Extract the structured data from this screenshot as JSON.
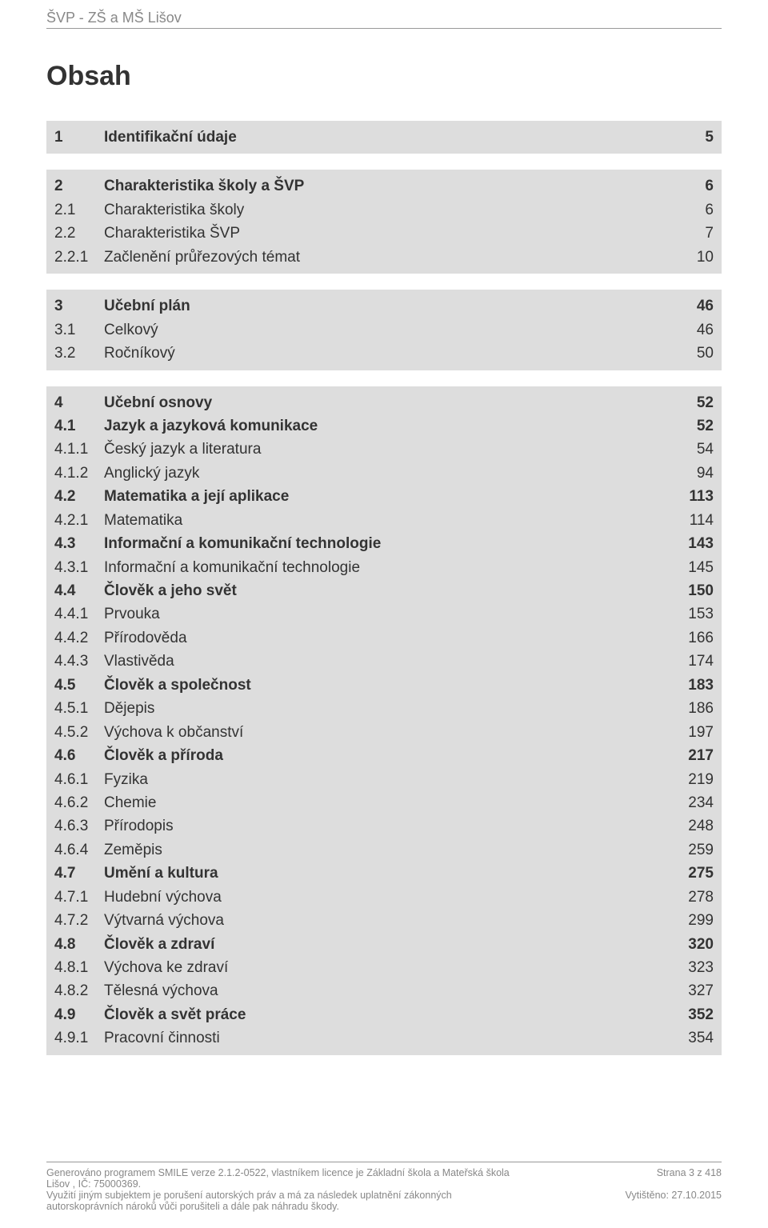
{
  "header": {
    "title": "ŠVP - ZŠ a MŠ Lišov"
  },
  "toc": {
    "title": "Obsah",
    "blocks": [
      {
        "rows": [
          {
            "num": "1",
            "label": "Identifikační údaje",
            "page": "5",
            "bold": true
          }
        ]
      },
      {
        "rows": [
          {
            "num": "2",
            "label": "Charakteristika školy a ŠVP",
            "page": "6",
            "bold": true
          },
          {
            "num": "2.1",
            "label": "Charakteristika školy",
            "page": "6",
            "bold": false
          },
          {
            "num": "2.2",
            "label": "Charakteristika ŠVP",
            "page": "7",
            "bold": false
          },
          {
            "num": "2.2.1",
            "label": "Začlenění průřezových témat",
            "page": "10",
            "bold": false
          }
        ]
      },
      {
        "rows": [
          {
            "num": "3",
            "label": "Učební plán",
            "page": "46",
            "bold": true
          },
          {
            "num": "3.1",
            "label": "Celkový",
            "page": "46",
            "bold": false
          },
          {
            "num": "3.2",
            "label": "Ročníkový",
            "page": "50",
            "bold": false
          }
        ]
      },
      {
        "rows": [
          {
            "num": "4",
            "label": "Učební osnovy",
            "page": "52",
            "bold": true
          },
          {
            "num": "4.1",
            "label": "Jazyk a jazyková komunikace",
            "page": "52",
            "bold": true
          },
          {
            "num": "4.1.1",
            "label": "Český jazyk a literatura",
            "page": "54",
            "bold": false
          },
          {
            "num": "4.1.2",
            "label": "Anglický jazyk",
            "page": "94",
            "bold": false
          },
          {
            "num": "4.2",
            "label": "Matematika a její aplikace",
            "page": "113",
            "bold": true
          },
          {
            "num": "4.2.1",
            "label": "Matematika",
            "page": "114",
            "bold": false
          },
          {
            "num": "4.3",
            "label": "Informační a komunikační technologie",
            "page": "143",
            "bold": true
          },
          {
            "num": "4.3.1",
            "label": "Informační a komunikační technologie",
            "page": "145",
            "bold": false
          },
          {
            "num": "4.4",
            "label": "Člověk a jeho svět",
            "page": "150",
            "bold": true
          },
          {
            "num": "4.4.1",
            "label": "Prvouka",
            "page": "153",
            "bold": false
          },
          {
            "num": "4.4.2",
            "label": "Přírodověda",
            "page": "166",
            "bold": false
          },
          {
            "num": "4.4.3",
            "label": "Vlastivěda",
            "page": "174",
            "bold": false
          },
          {
            "num": "4.5",
            "label": "Člověk a společnost",
            "page": "183",
            "bold": true
          },
          {
            "num": "4.5.1",
            "label": "Dějepis",
            "page": "186",
            "bold": false
          },
          {
            "num": "4.5.2",
            "label": "Výchova k občanství",
            "page": "197",
            "bold": false
          },
          {
            "num": "4.6",
            "label": "Člověk a příroda",
            "page": "217",
            "bold": true
          },
          {
            "num": "4.6.1",
            "label": "Fyzika",
            "page": "219",
            "bold": false
          },
          {
            "num": "4.6.2",
            "label": "Chemie",
            "page": "234",
            "bold": false
          },
          {
            "num": "4.6.3",
            "label": "Přírodopis",
            "page": "248",
            "bold": false
          },
          {
            "num": "4.6.4",
            "label": "Zeměpis",
            "page": "259",
            "bold": false
          },
          {
            "num": "4.7",
            "label": "Umění a kultura",
            "page": "275",
            "bold": true
          },
          {
            "num": "4.7.1",
            "label": "Hudební výchova",
            "page": "278",
            "bold": false
          },
          {
            "num": "4.7.2",
            "label": "Výtvarná výchova",
            "page": "299",
            "bold": false
          },
          {
            "num": "4.8",
            "label": "Člověk a zdraví",
            "page": "320",
            "bold": true
          },
          {
            "num": "4.8.1",
            "label": "Výchova ke zdraví",
            "page": "323",
            "bold": false
          },
          {
            "num": "4.8.2",
            "label": "Tělesná výchova",
            "page": "327",
            "bold": false
          },
          {
            "num": "4.9",
            "label": "Člověk a svět práce",
            "page": "352",
            "bold": true
          },
          {
            "num": "4.9.1",
            "label": "Pracovní činnosti",
            "page": "354",
            "bold": false
          }
        ]
      }
    ]
  },
  "footer": {
    "line1": "Generováno programem SMILE verze 2.1.2-0522, vlastníkem licence je Základní škola a Mateřská škola",
    "line2": "Lišov , IČ: 75000369.",
    "line3": "Využití jiným subjektem je porušení autorských práv a má za následek uplatnění zákonných",
    "line4": "autorskoprávních nároků vůči porušiteli a dále pak náhradu škody.",
    "page_label": "Strana 3 z 418",
    "print_label": "Vytištěno: 27.10.2015"
  },
  "colors": {
    "block_bg": "#dddddd",
    "text": "#333333",
    "muted": "#888888",
    "rule": "#999999",
    "page_bg": "#ffffff"
  }
}
